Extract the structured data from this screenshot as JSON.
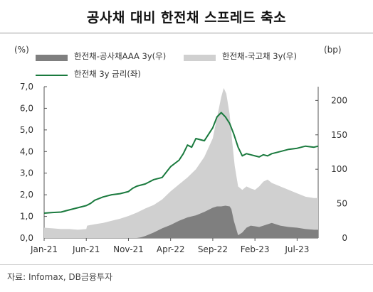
{
  "chart_data": {
    "type": "area",
    "title": "공사채 대비 한전채 스프레드 축소",
    "left_axis_unit": "(%)",
    "right_axis_unit": "(bp)",
    "left_ylim": [
      0,
      7
    ],
    "left_ticks": [
      "0,0",
      "1,0",
      "2,0",
      "3,0",
      "4,0",
      "5,0",
      "6,0",
      "7,0"
    ],
    "right_ylim": [
      0,
      220
    ],
    "right_ticks": [
      "0",
      "50",
      "100",
      "150",
      "200"
    ],
    "x_tick_labels": [
      "Jan-21",
      "Jun-21",
      "Nov-21",
      "Apr-22",
      "Sep-22",
      "Feb-23",
      "Jul-23"
    ],
    "x_tick_months": [
      0,
      5,
      10,
      15,
      20,
      25,
      30
    ],
    "x_range_months": [
      0,
      32.5
    ],
    "series": [
      {
        "name": "한전채-공사채AAA 3y(우)",
        "axis": "right",
        "style": "area",
        "color": "#7f7f7f",
        "x": [
          0,
          1,
          2,
          3,
          4,
          5,
          6,
          7,
          8,
          9,
          10,
          11,
          11.5,
          12,
          13,
          14,
          15,
          16,
          17,
          18,
          19,
          20,
          20.5,
          21,
          21.5,
          22,
          22.2,
          22.5,
          23,
          23.5,
          24,
          24.5,
          25,
          25.5,
          26,
          27,
          28,
          29,
          30,
          31,
          32,
          32.5
        ],
        "values": [
          0,
          0,
          0,
          0,
          0,
          0,
          0,
          0,
          0,
          0,
          0,
          0,
          1,
          3,
          8,
          14,
          19,
          25,
          30,
          33,
          38,
          44,
          46,
          46,
          47,
          46,
          42,
          25,
          4,
          8,
          15,
          18,
          17,
          16,
          18,
          22,
          18,
          16,
          15,
          13,
          12,
          12
        ]
      },
      {
        "name": "한전채-국고채 3y(우)",
        "axis": "right",
        "style": "area",
        "color": "#d0d0d0",
        "x": [
          0,
          1,
          2,
          3,
          4,
          5,
          5.1,
          6,
          7,
          8,
          9,
          10,
          11,
          12,
          13,
          14,
          15,
          16,
          17,
          18,
          19,
          20,
          20.5,
          21,
          21.3,
          21.6,
          22,
          22.3,
          22.6,
          23,
          23.5,
          24,
          24.5,
          25,
          25.5,
          26,
          26.5,
          27,
          28,
          29,
          30,
          31,
          32,
          32.5
        ],
        "values": [
          15,
          14,
          13,
          13,
          12,
          13,
          18,
          20,
          22,
          25,
          28,
          32,
          37,
          43,
          48,
          56,
          68,
          78,
          88,
          100,
          118,
          145,
          175,
          205,
          218,
          210,
          180,
          140,
          105,
          75,
          70,
          75,
          72,
          70,
          75,
          82,
          85,
          80,
          75,
          70,
          65,
          60,
          58,
          58
        ]
      },
      {
        "name": "한전채 3y 금리(좌)",
        "axis": "left",
        "style": "line",
        "color": "#1a7a3e",
        "x": [
          0,
          1,
          2,
          3,
          4,
          5,
          5.5,
          6,
          7,
          8,
          9,
          10,
          10.5,
          11,
          12,
          13,
          14,
          15,
          16,
          16.5,
          17,
          17.5,
          18,
          19,
          19.5,
          20,
          20.5,
          21,
          21.5,
          22,
          22.5,
          23,
          23.5,
          24,
          24.5,
          25,
          25.5,
          26,
          26.5,
          27,
          28,
          29,
          30,
          31,
          32,
          32.5
        ],
        "values": [
          1.15,
          1.18,
          1.2,
          1.3,
          1.4,
          1.5,
          1.6,
          1.75,
          1.9,
          2.0,
          2.05,
          2.15,
          2.3,
          2.4,
          2.5,
          2.7,
          2.8,
          3.3,
          3.6,
          3.9,
          4.3,
          4.2,
          4.6,
          4.5,
          4.8,
          5.1,
          5.6,
          5.8,
          5.6,
          5.3,
          4.8,
          4.2,
          3.8,
          3.9,
          3.85,
          3.8,
          3.75,
          3.85,
          3.8,
          3.9,
          4.0,
          4.1,
          4.15,
          4.25,
          4.2,
          4.25
        ]
      }
    ],
    "source": "자료: Infomax, DB금융투자"
  }
}
